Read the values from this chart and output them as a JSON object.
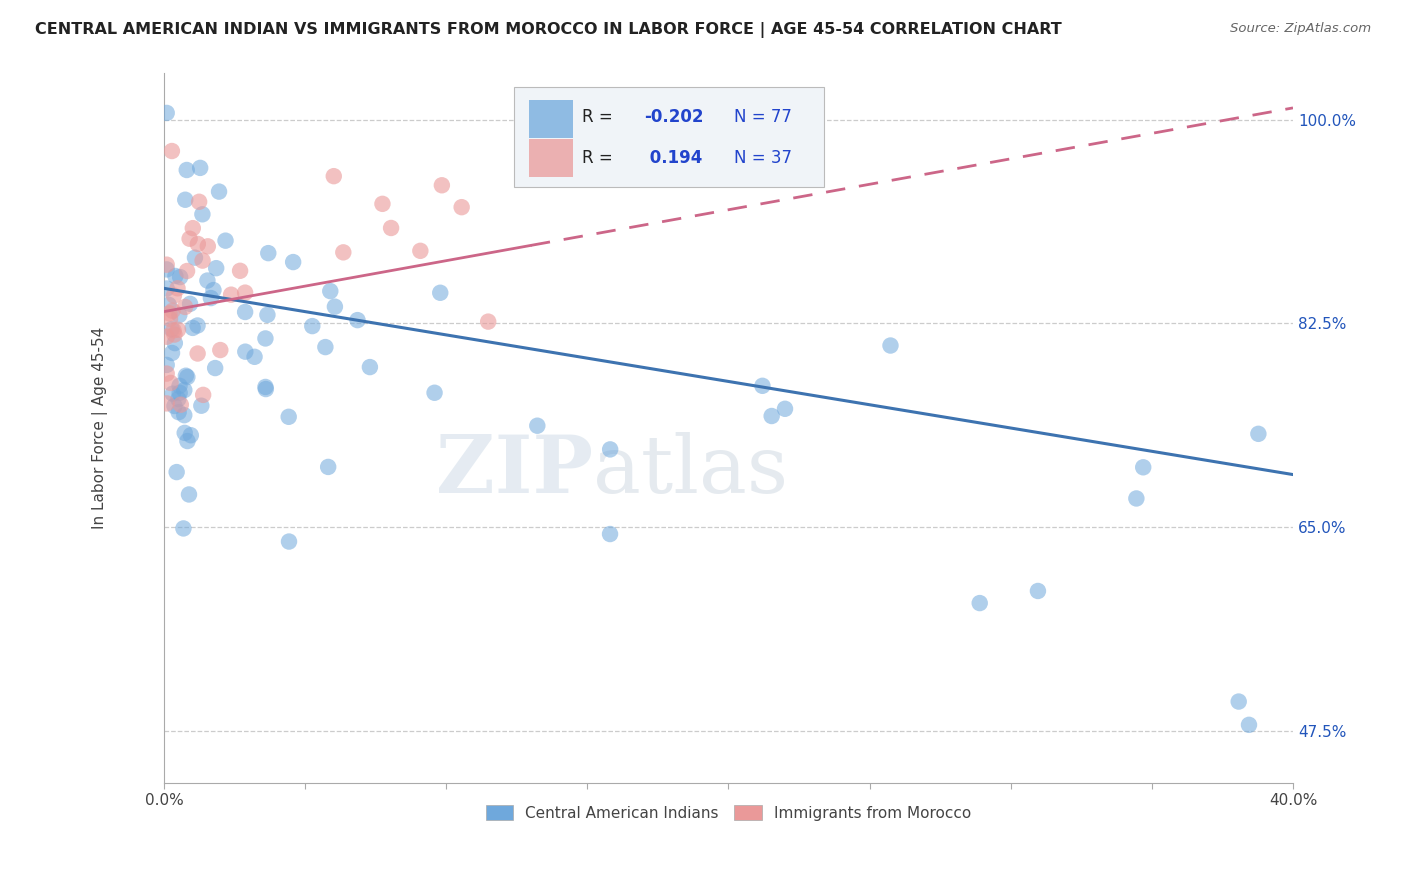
{
  "title": "CENTRAL AMERICAN INDIAN VS IMMIGRANTS FROM MOROCCO IN LABOR FORCE | AGE 45-54 CORRELATION CHART",
  "source": "Source: ZipAtlas.com",
  "ylabel": "In Labor Force | Age 45-54",
  "xlim": [
    0.0,
    0.4
  ],
  "ylim": [
    0.43,
    1.04
  ],
  "ytick_positions": [
    0.475,
    0.65,
    0.825,
    1.0
  ],
  "ytick_labels": [
    "47.5%",
    "65.0%",
    "82.5%",
    "100.0%"
  ],
  "blue_color": "#6fa8dc",
  "pink_color": "#ea9999",
  "blue_line_color": "#3d73b0",
  "pink_line_color": "#cc6688",
  "blue_R": -0.202,
  "blue_N": 77,
  "pink_R": 0.194,
  "pink_N": 37,
  "watermark_zip": "ZIP",
  "watermark_atlas": "atlas",
  "legend_label_blue": "Central American Indians",
  "legend_label_pink": "Immigrants from Morocco",
  "blue_trend_x0": 0.0,
  "blue_trend_y0": 0.855,
  "blue_trend_x1": 0.4,
  "blue_trend_y1": 0.695,
  "pink_trend_x0": 0.0,
  "pink_trend_y0": 0.835,
  "pink_trend_x1": 0.4,
  "pink_trend_y1": 1.01
}
